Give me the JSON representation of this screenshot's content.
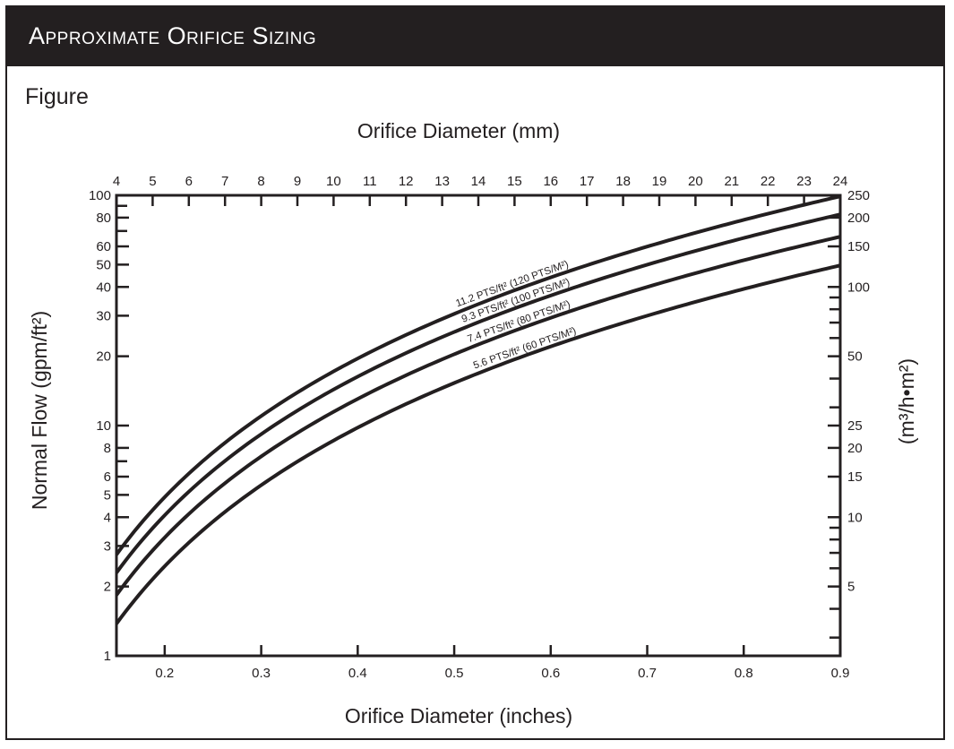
{
  "header": {
    "title": "Approximate Orifice Sizing"
  },
  "figure_label": "Figure",
  "colors": {
    "header_bg": "#231f20",
    "ink": "#231f20",
    "header_text": "#ffffff"
  },
  "chart_data": {
    "type": "line",
    "title": "",
    "xlabel": "Orifice Diameter (inches)",
    "x2label": "Orifice Diameter (mm)",
    "ylabel_left": "Normal Flow (gpm/ft²)",
    "ylabel_right": "(m³/h•m²)",
    "x_scale": "linear",
    "y_scale": "log",
    "xlim": [
      0.15,
      0.9
    ],
    "ylim": [
      1,
      100
    ],
    "grid": false,
    "x_ticks": [
      "0.2",
      "0.3",
      "0.4",
      "0.5",
      "0.6",
      "0.7",
      "0.8",
      "0.9"
    ],
    "x2_ticks": [
      "4",
      "5",
      "6",
      "7",
      "8",
      "9",
      "10",
      "11",
      "12",
      "13",
      "14",
      "15",
      "16",
      "17",
      "18",
      "19",
      "20",
      "21",
      "22",
      "23",
      "24"
    ],
    "y_ticks_left": [
      "1",
      "2",
      "3",
      "4",
      "5",
      "6",
      "8",
      "10",
      "20",
      "30",
      "40",
      "50",
      "60",
      "80",
      "100"
    ],
    "y_ticks_right": [
      "5",
      "10",
      "15",
      "20",
      "25",
      "50",
      "100",
      "150",
      "200",
      "250"
    ],
    "series": [
      {
        "name": "11.2 PTS/ft² (120 PTS/M²)",
        "x": [
          0.15,
          0.2,
          0.3,
          0.4,
          0.5,
          0.6,
          0.7,
          0.8,
          0.9
        ],
        "y": [
          2.76,
          4.9,
          11.0,
          19.6,
          30.6,
          44.1,
          60.0,
          78.4,
          99.0
        ]
      },
      {
        "name": "9.3 PTS/ft² (100 PTS/M²)",
        "x": [
          0.15,
          0.2,
          0.3,
          0.4,
          0.5,
          0.6,
          0.7,
          0.8,
          0.9
        ],
        "y": [
          2.3,
          4.1,
          9.2,
          16.3,
          25.5,
          36.7,
          50.0,
          65.3,
          82.6
        ]
      },
      {
        "name": "7.4 PTS/ft² (80 PTS/M²)",
        "x": [
          0.15,
          0.2,
          0.3,
          0.4,
          0.5,
          0.6,
          0.7,
          0.8,
          0.9
        ],
        "y": [
          1.84,
          3.27,
          7.4,
          13.1,
          20.4,
          29.4,
          40.0,
          52.3,
          66.1
        ]
      },
      {
        "name": "5.6 PTS/ft² (60 PTS/M²)",
        "x": [
          0.15,
          0.2,
          0.3,
          0.4,
          0.5,
          0.6,
          0.7,
          0.8,
          0.9
        ],
        "y": [
          1.38,
          2.45,
          5.5,
          9.8,
          15.3,
          22.0,
          30.0,
          39.2,
          49.6
        ]
      }
    ]
  }
}
